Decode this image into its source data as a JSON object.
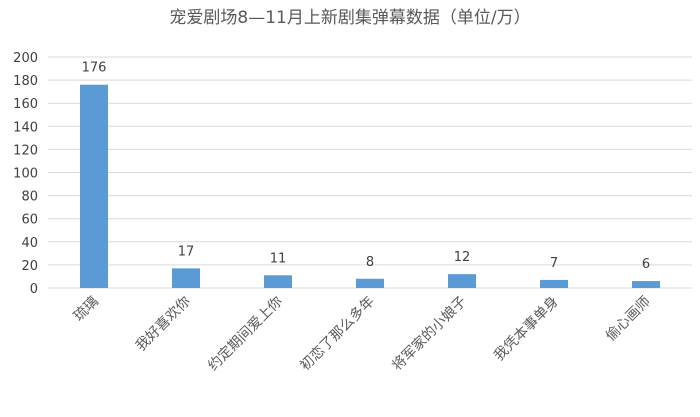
{
  "chart_data": {
    "type": "bar",
    "title": "宠爱剧场8—11月上新剧集弹幕数据（单位/万）",
    "xlabel": "",
    "ylabel": "",
    "categories": [
      "琉璃",
      "我好喜欢你",
      "约定期间爱上你",
      "初恋了那么多年",
      "将军家的小娘子",
      "我凭本事单身",
      "偷心画师"
    ],
    "values": [
      176,
      17,
      11,
      8,
      12,
      7,
      6
    ],
    "ylim": [
      0,
      200
    ],
    "yticks": [
      0,
      20,
      40,
      60,
      80,
      100,
      120,
      140,
      160,
      180,
      200
    ],
    "grid": true,
    "data_labels": true,
    "bar_color": "#5B9BD5",
    "grid_color": "#D9D9D9"
  }
}
